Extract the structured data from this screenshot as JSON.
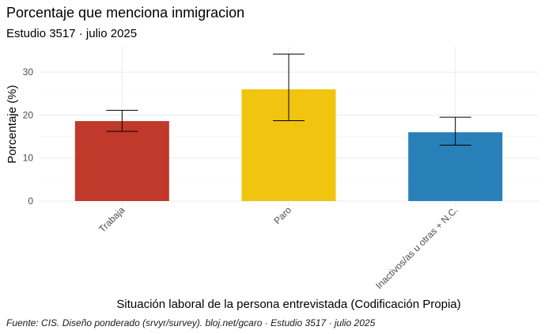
{
  "title": "Porcentaje que menciona inmigracion",
  "subtitle": "Estudio 3517 · julio 2025",
  "caption": "Fuente: CIS. Diseño ponderado (srvyr/survey). bloj.net/gcaro · Estudio 3517 · julio 2025",
  "chart_data": {
    "type": "bar",
    "title": "Porcentaje que menciona inmigracion",
    "subtitle": "Estudio 3517 · julio 2025",
    "xlabel": "Situación laboral de la persona entrevistada (Codificación Propia)",
    "ylabel": "Porcentaje (%)",
    "categories": [
      "Trabaja",
      "Paro",
      "Inactivos/as u otras + N.C."
    ],
    "values": [
      18.6,
      26.0,
      16.0
    ],
    "error_low": [
      16.2,
      18.7,
      13.0
    ],
    "error_high": [
      21.1,
      34.2,
      19.5
    ],
    "colors": [
      "#c0392b",
      "#f1c40f",
      "#2980b9"
    ],
    "ylim": [
      0,
      35
    ],
    "yticks": [
      0,
      10,
      20,
      30
    ],
    "ytick_labels": [
      "0",
      "10",
      "20",
      "30"
    ],
    "grid": true,
    "legend": "none"
  }
}
